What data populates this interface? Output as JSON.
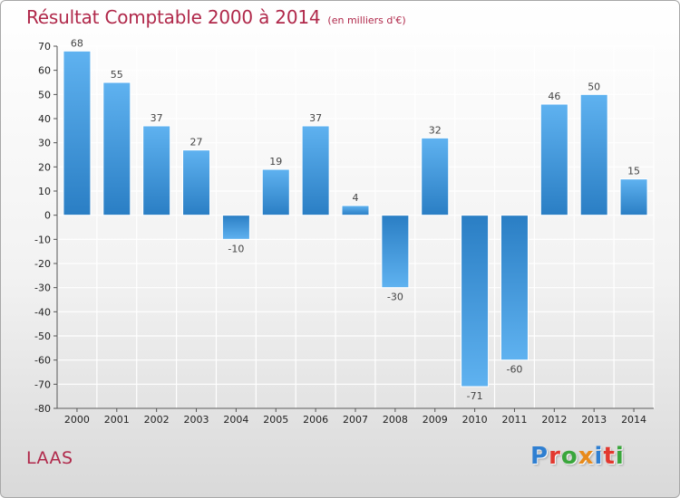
{
  "title": "Résultat Comptable 2000 à 2014",
  "unit_label": "(en milliers d'€)",
  "commune": "LAAS",
  "logo": {
    "text": "Proxiti",
    "colors": [
      "#2f7fd1",
      "#e2382f",
      "#3aa63c",
      "#e88a1a",
      "#2f7fd1",
      "#e2382f",
      "#3aa63c"
    ]
  },
  "colors": {
    "bar_light": "#5fb2f0",
    "bar_dark": "#2a7ec4",
    "title": "#b0284a",
    "grid": "#ffffff"
  },
  "chart_data": {
    "type": "bar",
    "title": "Résultat Comptable 2000 à 2014",
    "subtitle": "(en milliers d'€)",
    "xlabel": "",
    "ylabel": "",
    "ylim": [
      -80,
      70
    ],
    "yticks": [
      70,
      60,
      50,
      40,
      30,
      20,
      10,
      0,
      -10,
      -20,
      -30,
      -40,
      -50,
      -60,
      -70,
      -80
    ],
    "grid": true,
    "categories": [
      "2000",
      "2001",
      "2002",
      "2003",
      "2004",
      "2005",
      "2006",
      "2007",
      "2008",
      "2009",
      "2010",
      "2011",
      "2012",
      "2013",
      "2014"
    ],
    "values": [
      68,
      55,
      37,
      27,
      -10,
      19,
      37,
      4,
      -30,
      32,
      -71,
      -60,
      46,
      50,
      15
    ]
  }
}
